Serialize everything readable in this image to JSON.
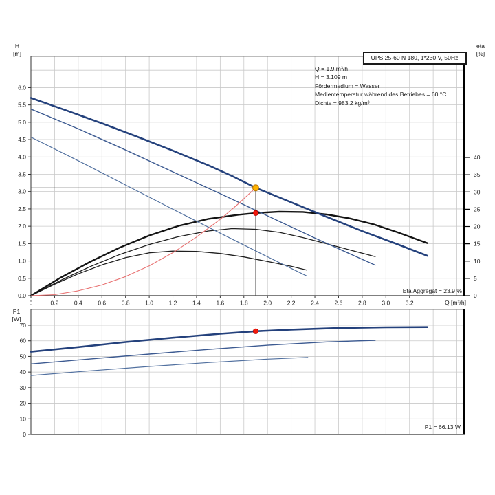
{
  "window": {
    "background": "#ffffff"
  },
  "title_box": {
    "text": "UPS 25-60 N 180, 1*230 V, 50Hz"
  },
  "annotations": {
    "operating_conditions": [
      "Q = 1.9 m³/h",
      "H = 3.109 m",
      "Fördermedium = Wasser",
      "Medientemperatur während des Betriebes = 60 °C",
      "Dichte = 983.2 kg/m³"
    ],
    "eta_aggregat": "Eta Aggregat = 23.9 %",
    "p1_operating": "P1 = 66.13 W"
  },
  "axes": {
    "h": [
      "H",
      "[m]"
    ],
    "eta": [
      "eta",
      "[%]"
    ],
    "p1": [
      "P1",
      "[W]"
    ],
    "q": "Q [m³/h]"
  },
  "colors": {
    "grid": "#c9c9c9",
    "frame": "#7a7a7a",
    "spine": "#333333",
    "right_spine": "#000000",
    "head_curve_3": "#24417c",
    "head_curve_2": "#3c5a91",
    "head_curve_1": "#51709f",
    "eta_curve": "#161616",
    "system_curve": "#e87070",
    "op_marker_fill": "#ffb400",
    "op_marker_stroke": "#c27b00",
    "red_marker": "#f2190a",
    "ref_line": "#4a4a4a"
  },
  "chart_data": [
    {
      "type": "line",
      "id": "hq-eta-chart",
      "title": "UPS 25-60 N 180, 1*230 V, 50Hz",
      "xlabel": "Q [m³/h]",
      "ylabel_left": "H [m]",
      "ylabel_right": "eta [%]",
      "x_range": [
        0,
        3.67
      ],
      "y_range_left": [
        0,
        6.9
      ],
      "y_range_right": [
        0,
        69
      ],
      "grid": true,
      "x_tick_labels": [
        "0",
        "0.2",
        "0.4",
        "0.6",
        "0.8",
        "1.0",
        "1.2",
        "1.4",
        "1.6",
        "1.8",
        "2.0",
        "2.2",
        "2.4",
        "2.6",
        "2.8",
        "3.0",
        "3.2"
      ],
      "h_tick_labels": [
        "0.0",
        "0.5",
        "1.0",
        "1.5",
        "2.0",
        "2.5",
        "3.0",
        "3.5",
        "4.0",
        "4.5",
        "5.0",
        "5.5",
        "6.0"
      ],
      "eta_tick_labels": [
        "0",
        "5",
        "10",
        "15",
        "20",
        "25",
        "30",
        "35",
        "40"
      ],
      "series": [
        {
          "name": "eta-curve-speed-1",
          "scale": "eta",
          "color": "#1f1f1f",
          "width": 1.3,
          "points": [
            [
              0,
              0
            ],
            [
              0.2,
              3.3
            ],
            [
              0.4,
              6.3
            ],
            [
              0.6,
              8.9
            ],
            [
              0.8,
              11.0
            ],
            [
              1.0,
              12.4
            ],
            [
              1.2,
              12.9
            ],
            [
              1.4,
              12.8
            ],
            [
              1.6,
              12.2
            ],
            [
              1.8,
              11.2
            ],
            [
              2.0,
              9.9
            ],
            [
              2.2,
              8.5
            ],
            [
              2.33,
              7.4
            ]
          ]
        },
        {
          "name": "eta-curve-speed-2",
          "scale": "eta",
          "color": "#1f1f1f",
          "width": 1.3,
          "points": [
            [
              0,
              0
            ],
            [
              0.25,
              4.4
            ],
            [
              0.5,
              8.4
            ],
            [
              0.75,
              11.9
            ],
            [
              1.0,
              14.8
            ],
            [
              1.25,
              17.1
            ],
            [
              1.5,
              18.7
            ],
            [
              1.7,
              19.4
            ],
            [
              1.9,
              19.2
            ],
            [
              2.1,
              18.3
            ],
            [
              2.3,
              16.8
            ],
            [
              2.5,
              15.0
            ],
            [
              2.7,
              13.2
            ],
            [
              2.91,
              11.3
            ]
          ]
        },
        {
          "name": "eta-curve-speed-3",
          "scale": "eta",
          "color": "#141414",
          "width": 2.4,
          "points": [
            [
              0,
              0
            ],
            [
              0.25,
              5.2
            ],
            [
              0.5,
              9.8
            ],
            [
              0.75,
              13.9
            ],
            [
              1.0,
              17.4
            ],
            [
              1.25,
              20.2
            ],
            [
              1.5,
              22.2
            ],
            [
              1.75,
              23.4
            ],
            [
              1.9,
              23.9
            ],
            [
              2.1,
              24.3
            ],
            [
              2.3,
              24.2
            ],
            [
              2.5,
              23.5
            ],
            [
              2.7,
              22.3
            ],
            [
              2.9,
              20.6
            ],
            [
              3.1,
              18.3
            ],
            [
              3.35,
              15.2
            ]
          ]
        },
        {
          "name": "head-curve-speed-1",
          "scale": "H",
          "color": "#51709f",
          "width": 1.2,
          "points": [
            [
              0,
              4.57
            ],
            [
              0.4,
              3.89
            ],
            [
              0.8,
              3.19
            ],
            [
              1.2,
              2.49
            ],
            [
              1.6,
              1.8
            ],
            [
              2.0,
              1.12
            ],
            [
              2.33,
              0.57
            ]
          ]
        },
        {
          "name": "head-curve-speed-2",
          "scale": "H",
          "color": "#3c5a91",
          "width": 1.4,
          "points": [
            [
              0,
              5.38
            ],
            [
              0.4,
              4.81
            ],
            [
              0.8,
              4.2
            ],
            [
              1.2,
              3.57
            ],
            [
              1.6,
              2.94
            ],
            [
              2.0,
              2.3
            ],
            [
              2.4,
              1.66
            ],
            [
              2.7,
              1.2
            ],
            [
              2.91,
              0.88
            ]
          ]
        },
        {
          "name": "head-curve-speed-3",
          "scale": "H",
          "color": "#24417c",
          "width": 2.6,
          "points": [
            [
              0,
              5.7
            ],
            [
              0.3,
              5.34
            ],
            [
              0.6,
              4.97
            ],
            [
              0.9,
              4.58
            ],
            [
              1.2,
              4.18
            ],
            [
              1.5,
              3.76
            ],
            [
              1.7,
              3.45
            ],
            [
              1.9,
              3.109
            ],
            [
              2.2,
              2.69
            ],
            [
              2.5,
              2.27
            ],
            [
              2.8,
              1.86
            ],
            [
              3.1,
              1.48
            ],
            [
              3.35,
              1.15
            ]
          ]
        },
        {
          "name": "system-curve",
          "scale": "H",
          "color": "#e87070",
          "width": 1.1,
          "points": [
            [
              0,
              0
            ],
            [
              0.2,
              0.03
            ],
            [
              0.4,
              0.14
            ],
            [
              0.6,
              0.31
            ],
            [
              0.8,
              0.55
            ],
            [
              1.0,
              0.86
            ],
            [
              1.2,
              1.24
            ],
            [
              1.4,
              1.69
            ],
            [
              1.6,
              2.2
            ],
            [
              1.75,
              2.64
            ],
            [
              1.9,
              3.109
            ]
          ]
        }
      ],
      "operating_point": {
        "q": 1.9,
        "h": 3.109,
        "eta_pct": 23.9
      }
    },
    {
      "type": "line",
      "id": "p1-chart",
      "xlabel": "Q [m³/h]",
      "ylabel_left": "P1 [W]",
      "x_range": [
        0,
        3.67
      ],
      "y_range_left": [
        0,
        80
      ],
      "grid": true,
      "p1_tick_labels": [
        "0",
        "10",
        "20",
        "30",
        "40",
        "50",
        "60",
        "70"
      ],
      "series": [
        {
          "name": "p1-curve-speed-1",
          "scale": "P1",
          "color": "#51709f",
          "width": 1.2,
          "points": [
            [
              0,
              37.8
            ],
            [
              0.5,
              40.8
            ],
            [
              1.0,
              43.6
            ],
            [
              1.5,
              46.1
            ],
            [
              2.0,
              48.3
            ],
            [
              2.34,
              49.4
            ]
          ]
        },
        {
          "name": "p1-curve-speed-2",
          "scale": "P1",
          "color": "#3c5a91",
          "width": 1.4,
          "points": [
            [
              0,
              45.2
            ],
            [
              0.5,
              48.4
            ],
            [
              1.0,
              51.5
            ],
            [
              1.5,
              54.5
            ],
            [
              2.0,
              57.2
            ],
            [
              2.5,
              59.3
            ],
            [
              2.91,
              60.3
            ]
          ]
        },
        {
          "name": "p1-curve-speed-3",
          "scale": "P1",
          "color": "#24417c",
          "width": 2.6,
          "points": [
            [
              0,
              53.0
            ],
            [
              0.4,
              56.0
            ],
            [
              0.8,
              59.2
            ],
            [
              1.2,
              62.0
            ],
            [
              1.6,
              64.5
            ],
            [
              1.9,
              66.13
            ],
            [
              2.2,
              67.2
            ],
            [
              2.6,
              68.2
            ],
            [
              3.0,
              68.7
            ],
            [
              3.35,
              68.8
            ]
          ]
        }
      ],
      "operating_point": {
        "q": 1.9,
        "p1_w": 66.13
      }
    }
  ]
}
